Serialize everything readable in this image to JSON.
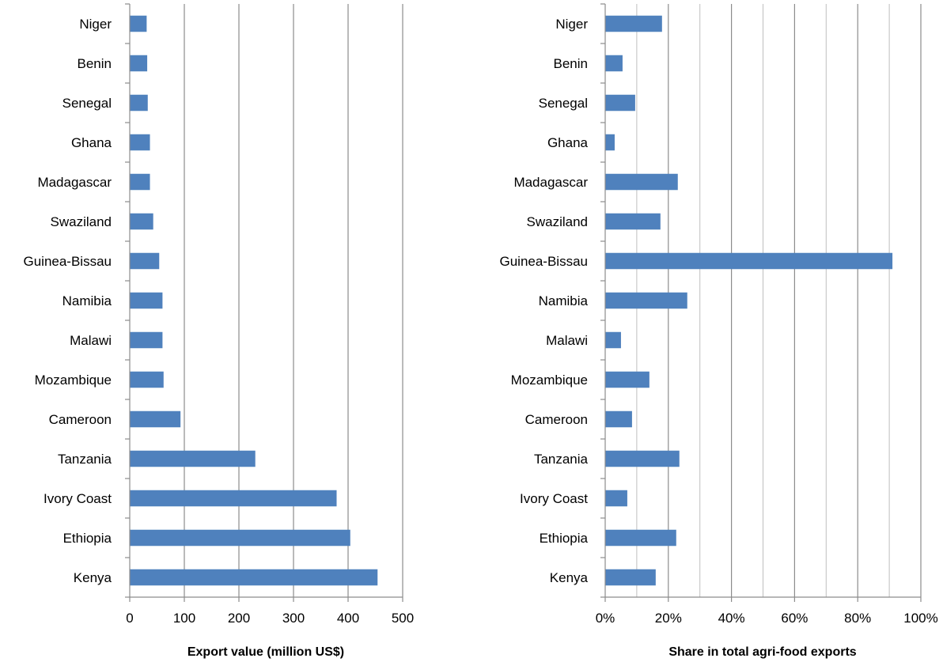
{
  "chart_data": [
    {
      "type": "bar",
      "orientation": "horizontal",
      "categories": [
        "Niger",
        "Benin",
        "Senegal",
        "Ghana",
        "Madagascar",
        "Swaziland",
        "Guinea-Bissau",
        "Namibia",
        "Malawi",
        "Mozambique",
        "Cameroon",
        "Tanzania",
        "Ivory Coast",
        "Ethiopia",
        "Kenya"
      ],
      "values": [
        31,
        32,
        33,
        37,
        37,
        43,
        54,
        60,
        60,
        62,
        93,
        230,
        379,
        404,
        454
      ],
      "xlabel": "Export value (million US$)",
      "xlim": [
        0,
        500
      ],
      "xticks": [
        0,
        100,
        200,
        300,
        400,
        500
      ],
      "xtick_labels": [
        "0",
        "100",
        "200",
        "300",
        "400",
        "500"
      ],
      "grid": "vertical",
      "color": "#4f81bd"
    },
    {
      "type": "bar",
      "orientation": "horizontal",
      "categories": [
        "Niger",
        "Benin",
        "Senegal",
        "Ghana",
        "Madagascar",
        "Swaziland",
        "Guinea-Bissau",
        "Namibia",
        "Malawi",
        "Mozambique",
        "Cameroon",
        "Tanzania",
        "Ivory Coast",
        "Ethiopia",
        "Kenya"
      ],
      "values": [
        0.18,
        0.055,
        0.095,
        0.03,
        0.23,
        0.175,
        0.91,
        0.26,
        0.05,
        0.14,
        0.085,
        0.235,
        0.07,
        0.225,
        0.16
      ],
      "xlabel": "Share in total agri-food exports",
      "xlim": [
        0,
        1
      ],
      "xticks": [
        0,
        0.2,
        0.4,
        0.6,
        0.8,
        1.0
      ],
      "xtick_labels": [
        "0%",
        "20%",
        "40%",
        "60%",
        "80%",
        "100%"
      ],
      "minor_gridlines": [
        0.1,
        0.3,
        0.5,
        0.7,
        0.9
      ],
      "grid": "vertical",
      "color": "#4f81bd"
    }
  ]
}
